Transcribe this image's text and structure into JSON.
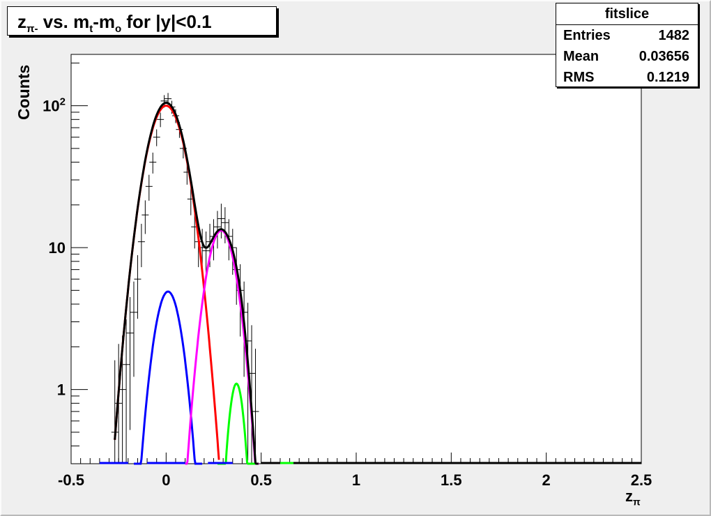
{
  "title": {
    "main": "z",
    "sub": "π-",
    "rest": " vs. m",
    "sub2": "t",
    "rest2": "-m",
    "sub3": "o",
    "rest3": " for |y|<0.1"
  },
  "stats": {
    "title": "fitslice",
    "rows": [
      {
        "label": "Entries",
        "value": "1482"
      },
      {
        "label": "Mean",
        "value": "0.03656"
      },
      {
        "label": "RMS",
        "value": "0.1219"
      }
    ]
  },
  "colors": {
    "total": "#000000",
    "red": "#ff0000",
    "blue": "#0000ff",
    "magenta": "#ff00ff",
    "green": "#00ff00",
    "data": "#000000"
  },
  "chart_data": {
    "type": "line",
    "title": "zπ- vs. mt-mo for |y|<0.1",
    "xlabel": "zπ",
    "ylabel": "Counts",
    "xlim": [
      -0.5,
      2.5
    ],
    "ylim": [
      0.3,
      230
    ],
    "yscale": "log",
    "xticks": [
      "-0.5",
      "0",
      "0.5",
      "1",
      "1.5",
      "2",
      "2.5"
    ],
    "yticks": [
      {
        "v": 1,
        "label": "1"
      },
      {
        "v": 10,
        "label": "10"
      },
      {
        "v": 100,
        "label": "10",
        "exp": "2"
      }
    ],
    "series": [
      {
        "key": "red",
        "peak": 100,
        "mu": 0.0,
        "sigma": 0.082,
        "xmin": -0.27,
        "xmax": 0.28
      },
      {
        "key": "blue",
        "peak": 4.9,
        "mu": 0.01,
        "sigma": 0.06,
        "xmin": -0.17,
        "xmax": 0.19
      },
      {
        "key": "magenta",
        "peak": 13.2,
        "mu": 0.29,
        "sigma": 0.065,
        "xmin": 0.1,
        "xmax": 0.49
      },
      {
        "key": "green",
        "peak": 1.1,
        "mu": 0.37,
        "sigma": 0.035,
        "xmin": 0.27,
        "xmax": 0.47
      }
    ],
    "data_points": [
      [
        -0.27,
        0.5
      ],
      [
        -0.25,
        0.8
      ],
      [
        -0.23,
        1.0
      ],
      [
        -0.21,
        1.5
      ],
      [
        -0.19,
        2.5
      ],
      [
        -0.17,
        3.5
      ],
      [
        -0.15,
        6.0
      ],
      [
        -0.13,
        11
      ],
      [
        -0.11,
        17
      ],
      [
        -0.09,
        27
      ],
      [
        -0.07,
        40
      ],
      [
        -0.05,
        60
      ],
      [
        -0.03,
        80
      ],
      [
        -0.01,
        108
      ],
      [
        0.01,
        112
      ],
      [
        0.03,
        98
      ],
      [
        0.05,
        85
      ],
      [
        0.07,
        68
      ],
      [
        0.09,
        50
      ],
      [
        0.11,
        34
      ],
      [
        0.13,
        22
      ],
      [
        0.15,
        14
      ],
      [
        0.17,
        11
      ],
      [
        0.19,
        10
      ],
      [
        0.21,
        9.5
      ],
      [
        0.23,
        11
      ],
      [
        0.25,
        12
      ],
      [
        0.27,
        14
      ],
      [
        0.29,
        16
      ],
      [
        0.31,
        15
      ],
      [
        0.33,
        12
      ],
      [
        0.35,
        10
      ],
      [
        0.37,
        7
      ],
      [
        0.39,
        5
      ],
      [
        0.41,
        3.5
      ],
      [
        0.43,
        2.2
      ],
      [
        0.45,
        1.3
      ],
      [
        0.47,
        0.7
      ]
    ]
  }
}
